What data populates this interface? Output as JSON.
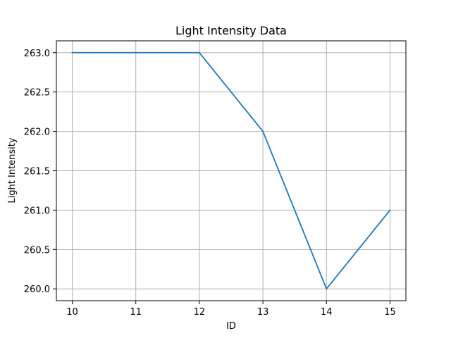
{
  "chart_data": {
    "type": "line",
    "title": "Light Intensity Data",
    "xlabel": "ID",
    "ylabel": "Light Intensity",
    "x": [
      10,
      11,
      12,
      13,
      14,
      15
    ],
    "series": [
      {
        "values": [
          263.0,
          263.0,
          263.0,
          262.0,
          260.0,
          261.0
        ],
        "color": "#1f77b4"
      }
    ],
    "xticks": [
      10,
      11,
      12,
      13,
      14,
      15
    ],
    "xtick_labels": [
      "10",
      "11",
      "12",
      "13",
      "14",
      "15"
    ],
    "yticks": [
      260.0,
      260.5,
      261.0,
      261.5,
      262.0,
      262.5,
      263.0
    ],
    "ytick_labels": [
      "260.0",
      "260.5",
      "261.0",
      "261.5",
      "262.0",
      "262.5",
      "263.0"
    ],
    "xlim": [
      9.75,
      15.25
    ],
    "ylim": [
      259.85,
      263.15
    ],
    "grid": true,
    "grid_color": "#b0b0b0",
    "axis_color": "#000000"
  }
}
